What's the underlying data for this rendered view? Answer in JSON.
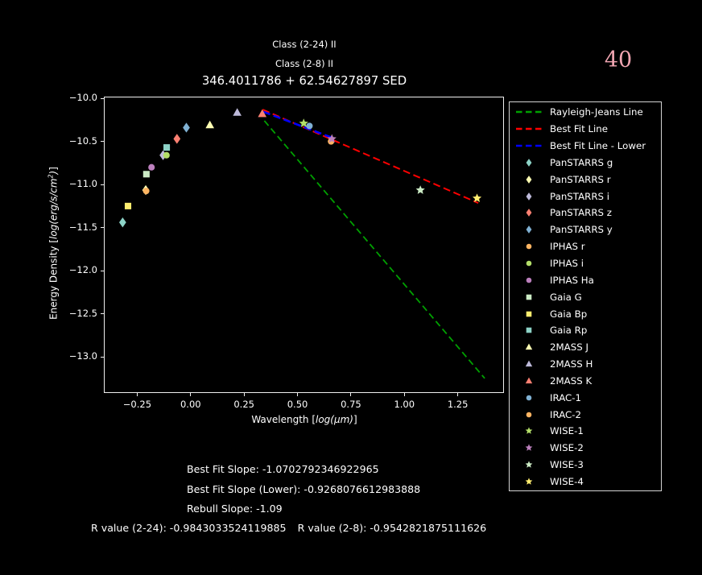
{
  "header": {
    "class_2_24": "Class (2-24) II",
    "class_2_8": "Class (2-8) II",
    "title": "346.4011786 + 62.54627897 SED",
    "page_number": "40",
    "page_number_color": "#f2a6b2"
  },
  "chart_data": {
    "type": "scatter",
    "title": "346.4011786 + 62.54627897 SED",
    "xlabel": "Wavelength [log(um)]",
    "ylabel": "Energy Density [log(erg/s/cm^2)]",
    "xlabel_parts": [
      {
        "t": "Wavelength [",
        "i": false
      },
      {
        "t": "log(μm)",
        "i": true
      },
      {
        "t": "]",
        "i": false
      }
    ],
    "ylabel_parts": [
      {
        "t": "Energy Density [",
        "i": false
      },
      {
        "t": "log(erg/s/cm",
        "i": true
      },
      {
        "t": "2",
        "i": true,
        "sup": true
      },
      {
        "t": ")",
        "i": true
      },
      {
        "t": "]",
        "i": false
      }
    ],
    "xlim": [
      -0.406,
      1.466
    ],
    "ylim": [
      -13.42,
      -9.98
    ],
    "xticks": [
      -0.25,
      0.0,
      0.25,
      0.5,
      0.75,
      1.0,
      1.25
    ],
    "xtick_labels": [
      "−0.25",
      "0.00",
      "0.25",
      "0.50",
      "0.75",
      "1.00",
      "1.25"
    ],
    "yticks": [
      -10.0,
      -10.5,
      -11.0,
      -11.5,
      -12.0,
      -12.5,
      -13.0
    ],
    "ytick_labels": [
      "−10.0",
      "−10.5",
      "−11.0",
      "−11.5",
      "−12.0",
      "−12.5",
      "−13.0"
    ],
    "grid": false,
    "legend_position": "outside-right",
    "background": "#000000",
    "axis_color": "#efefef",
    "lines": [
      {
        "label": "Rayleigh-Jeans Line",
        "color": "#00a000",
        "dash": "8 4.6",
        "width": 1.8,
        "x1": 0.345,
        "y1": -10.26,
        "x2": 1.376,
        "y2": -13.25
      },
      {
        "label": "Best Fit Line",
        "color": "#ff0000",
        "dash": "9 4.6",
        "width": 2.0,
        "x1": 0.337,
        "y1": -10.13,
        "x2": 1.346,
        "y2": -11.215
      },
      {
        "label": "Best Fit Line - Lower",
        "color": "#0000ff",
        "dash": "9 4.6",
        "width": 2.6,
        "x1": 0.34,
        "y1": -10.155,
        "x2": 0.665,
        "y2": -10.46
      }
    ],
    "points": [
      {
        "label": "PanSTARRS g",
        "marker": "diamond",
        "color": "#8dd3c7",
        "x": -0.318,
        "y": -11.44
      },
      {
        "label": "PanSTARRS r",
        "marker": "diamond",
        "color": "#ffffb3",
        "x": -0.21,
        "y": -11.065
      },
      {
        "label": "PanSTARRS i",
        "marker": "diamond",
        "color": "#bebada",
        "x": -0.129,
        "y": -10.66
      },
      {
        "label": "PanSTARRS z",
        "marker": "diamond",
        "color": "#fb8072",
        "x": -0.064,
        "y": -10.47
      },
      {
        "label": "PanSTARRS y",
        "marker": "diamond",
        "color": "#80b1d3",
        "x": -0.02,
        "y": -10.34
      },
      {
        "label": "IPHAS r",
        "marker": "circle",
        "color": "#fdb462",
        "x": -0.208,
        "y": -11.075
      },
      {
        "label": "IPHAS i",
        "marker": "circle",
        "color": "#b3de69",
        "x": -0.113,
        "y": -10.66
      },
      {
        "label": "IPHAS Ha",
        "marker": "circle",
        "color": "#bc80bd",
        "x": -0.183,
        "y": -10.8
      },
      {
        "label": "Gaia G",
        "marker": "square",
        "color": "#ccebc5",
        "x": -0.207,
        "y": -10.88
      },
      {
        "label": "Gaia Bp",
        "marker": "square",
        "color": "#ffed6f",
        "x": -0.293,
        "y": -11.25
      },
      {
        "label": "Gaia Rp",
        "marker": "square",
        "color": "#8dd3c7",
        "x": -0.112,
        "y": -10.57
      },
      {
        "label": "2MASS J",
        "marker": "triangle",
        "color": "#ffffb3",
        "x": 0.09,
        "y": -10.31
      },
      {
        "label": "2MASS H",
        "marker": "triangle",
        "color": "#bebada",
        "x": 0.218,
        "y": -10.165
      },
      {
        "label": "2MASS K",
        "marker": "triangle",
        "color": "#fb8072",
        "x": 0.335,
        "y": -10.18
      },
      {
        "label": "IRAC-1",
        "marker": "circle",
        "color": "#80b1d3",
        "x": 0.556,
        "y": -10.32
      },
      {
        "label": "IRAC-2",
        "marker": "circle",
        "color": "#fdb462",
        "x": 0.657,
        "y": -10.5
      },
      {
        "label": "WISE-1",
        "marker": "star",
        "color": "#b3de69",
        "x": 0.529,
        "y": -10.29
      },
      {
        "label": "WISE-2",
        "marker": "star",
        "color": "#bc80bd",
        "x": 0.661,
        "y": -10.47
      },
      {
        "label": "WISE-3",
        "marker": "star",
        "color": "#ccebc5",
        "x": 1.075,
        "y": -11.065
      },
      {
        "label": "WISE-4",
        "marker": "star",
        "color": "#ffed6f",
        "x": 1.34,
        "y": -11.16
      }
    ],
    "legend_order": [
      "lines",
      "points"
    ]
  },
  "stats": {
    "best_fit_slope": "Best Fit Slope: -1.0702792346922965",
    "best_fit_slope_lower": "Best Fit Slope (Lower): -0.9268076612983888",
    "rebull_slope": "Rebull Slope: -1.09",
    "r_value_2_24": "R value (2-24): -0.9843033524119885",
    "r_value_2_8": "R value (2-8): -0.9542821875111626"
  }
}
